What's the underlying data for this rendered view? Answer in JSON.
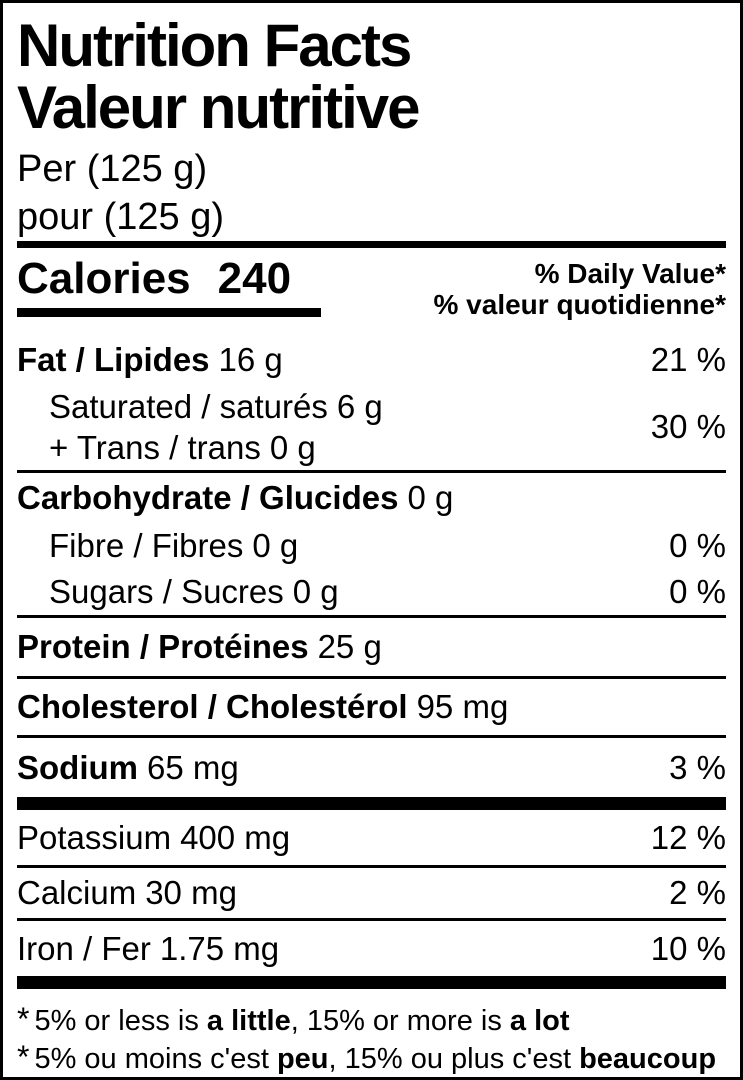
{
  "label": {
    "title_en": "Nutrition Facts",
    "title_fr": "Valeur nutritive",
    "serving_en": "Per (125 g)",
    "serving_fr": "pour (125 g)",
    "calories": {
      "label": "Calories",
      "value": "240"
    },
    "dv_header_en": "% Daily Value*",
    "dv_header_fr": "% valeur quotidienne*",
    "nutrients": {
      "fat": {
        "label": "Fat / Lipides",
        "amount": "16 g",
        "dv": "21 %"
      },
      "saturated": {
        "label": "Saturated / saturés",
        "amount": "6 g"
      },
      "trans": {
        "label": "+ Trans / trans",
        "amount": "0 g"
      },
      "saturated_trans_dv": "30 %",
      "carbohydrate": {
        "label": "Carbohydrate / Glucides",
        "amount": "0 g"
      },
      "fibre": {
        "label": "Fibre / Fibres",
        "amount": "0 g",
        "dv": "0 %"
      },
      "sugars": {
        "label": "Sugars / Sucres",
        "amount": "0 g",
        "dv": "0 %"
      },
      "protein": {
        "label": "Protein / Protéines",
        "amount": "25 g"
      },
      "cholesterol": {
        "label": "Cholesterol / Cholestérol",
        "amount": "95 mg"
      },
      "sodium": {
        "label": "Sodium",
        "amount": "65 mg",
        "dv": "3 %"
      },
      "potassium": {
        "label": "Potassium",
        "amount": "400 mg",
        "dv": "12 %"
      },
      "calcium": {
        "label": "Calcium",
        "amount": "30 mg",
        "dv": "2 %"
      },
      "iron": {
        "label": "Iron / Fer",
        "amount": "1.75 mg",
        "dv": "10 %"
      }
    },
    "footnote_en": {
      "star": "*",
      "part1": "5% or less is ",
      "bold1": "a little",
      "part2": ", 15% or more is ",
      "bold2": "a lot"
    },
    "footnote_fr": {
      "star": "*",
      "part1": "5% ou moins c'est ",
      "bold1": "peu",
      "part2": ", 15% ou plus c'est ",
      "bold2": "beaucoup"
    }
  },
  "colors": {
    "ink": "#000000",
    "background": "#ffffff"
  }
}
